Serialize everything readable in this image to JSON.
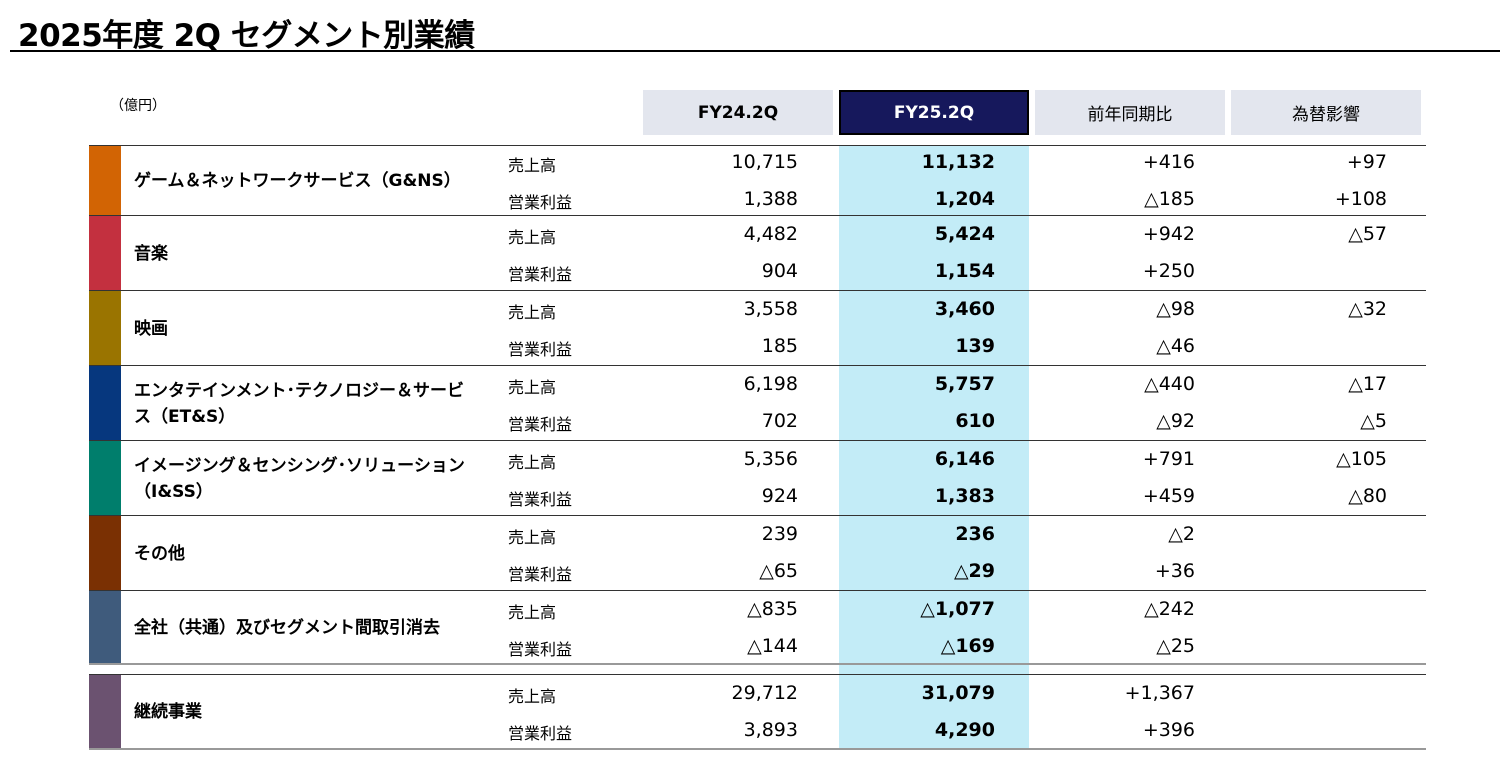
{
  "title": "2025年度 2Q セグメント別業績",
  "unit": "（億円）",
  "headers": [
    "FY24.2Q",
    "FY25.2Q",
    "前年同期比",
    "為替影響"
  ],
  "metric_labels": {
    "sales": "売上高",
    "op": "営業利益"
  },
  "rows": [
    {
      "name": "ゲーム＆ネットワークサービス（G&NS）",
      "color": "#d26404",
      "sales": [
        "10,715",
        "11,132",
        "+416",
        "+97"
      ],
      "op": [
        "1,388",
        "1,204",
        "△185",
        "+108"
      ]
    },
    {
      "name": "音楽",
      "color": "#c3303f",
      "sales": [
        "4,482",
        "5,424",
        "+942",
        "△57"
      ],
      "op": [
        "904",
        "1,154",
        "+250",
        ""
      ]
    },
    {
      "name": "映画",
      "color": "#9a7400",
      "sales": [
        "3,558",
        "3,460",
        "△98",
        "△32"
      ],
      "op": [
        "185",
        "139",
        "△46",
        ""
      ]
    },
    {
      "name": "エンタテインメント･テクノロジー＆サービス（ET&S）",
      "color": "#06377e",
      "sales": [
        "6,198",
        "5,757",
        "△440",
        "△17"
      ],
      "op": [
        "702",
        "610",
        "△92",
        "△5"
      ]
    },
    {
      "name": "イメージング＆センシング･ソリューション（I&SS）",
      "color": "#007e6c",
      "sales": [
        "5,356",
        "6,146",
        "+791",
        "△105"
      ],
      "op": [
        "924",
        "1,383",
        "+459",
        "△80"
      ]
    },
    {
      "name": "その他",
      "color": "#7a3003",
      "sales": [
        "239",
        "236",
        "△2",
        ""
      ],
      "op": [
        "△65",
        "△29",
        "+36",
        ""
      ]
    },
    {
      "name": "全社（共通）及びセグメント間取引消去",
      "color": "#3f5b7c",
      "sales": [
        "△835",
        "△1,077",
        "△242",
        ""
      ],
      "op": [
        "△144",
        "△169",
        "△25",
        ""
      ]
    },
    {
      "name": "継続事業",
      "color": "#6b5270",
      "sales": [
        "29,712",
        "31,079",
        "+1,367",
        ""
      ],
      "op": [
        "3,893",
        "4,290",
        "+396",
        ""
      ]
    }
  ]
}
